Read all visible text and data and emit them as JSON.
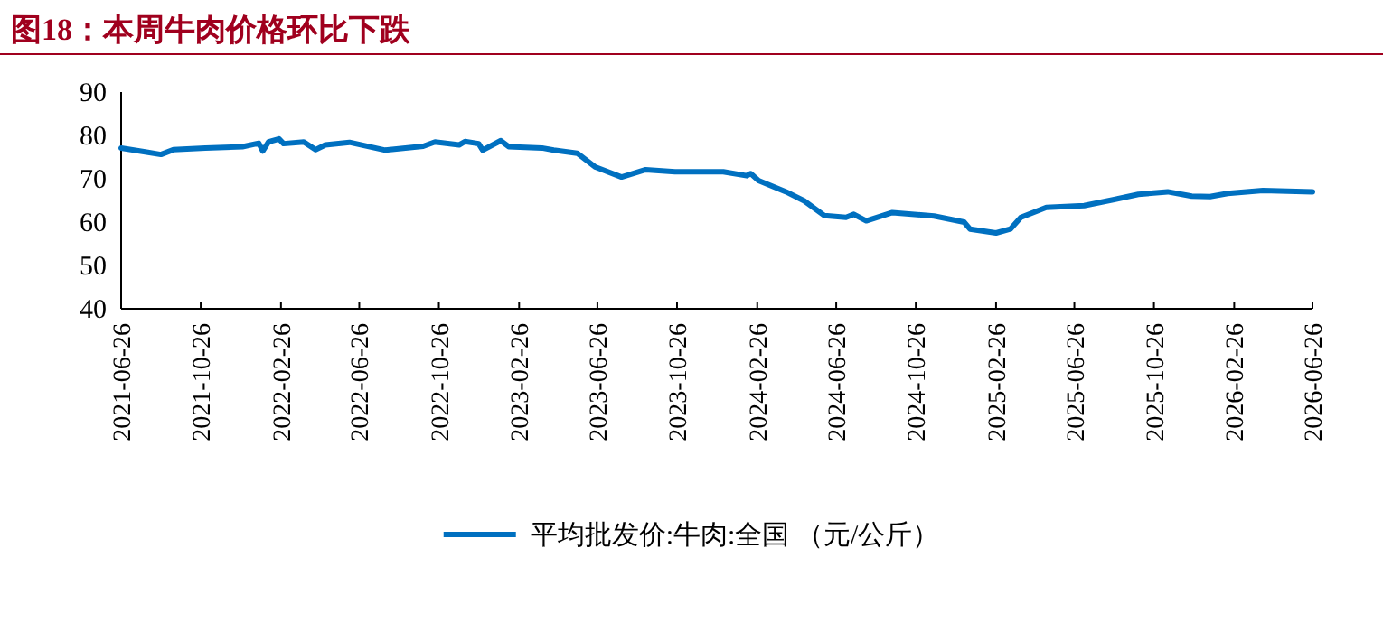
{
  "chart_data": {
    "type": "line",
    "title": "图18：本周牛肉价格环比下跌",
    "legend": "bottom",
    "xlim": [
      "2021-06-26",
      "2026-06-26"
    ],
    "xticks": [
      "2021-06-26",
      "2021-10-26",
      "2022-02-26",
      "2022-06-26",
      "2022-10-26",
      "2023-02-26",
      "2023-06-26",
      "2023-10-26",
      "2024-02-26",
      "2024-06-26",
      "2024-10-26",
      "2025-02-26",
      "2025-06-26",
      "2025-10-26",
      "2026-02-26",
      "2026-06-26"
    ],
    "ylim": [
      40,
      90
    ],
    "yticks": [
      40,
      50,
      60,
      70,
      80,
      90
    ],
    "series": [
      {
        "name": "平均批发价:牛肉:全国 （元/公斤）",
        "color": "#0070c0",
        "x": [
          "2021-06-26",
          "2021-08-02",
          "2021-08-26",
          "2021-09-14",
          "2021-11-02",
          "2021-12-29",
          "2022-01-23",
          "2022-01-29",
          "2022-02-07",
          "2022-02-23",
          "2022-03-02",
          "2022-04-02",
          "2022-04-20",
          "2022-05-05",
          "2022-06-11",
          "2022-08-05",
          "2022-10-02",
          "2022-10-20",
          "2022-11-26",
          "2022-12-05",
          "2022-12-26",
          "2023-01-01",
          "2023-01-29",
          "2023-02-10",
          "2023-04-02",
          "2023-04-20",
          "2023-05-26",
          "2023-06-23",
          "2023-08-02",
          "2023-09-08",
          "2023-10-23",
          "2024-01-05",
          "2024-02-10",
          "2024-02-16",
          "2024-02-28",
          "2024-04-10",
          "2024-05-08",
          "2024-06-08",
          "2024-07-11",
          "2024-07-23",
          "2024-08-11",
          "2024-09-20",
          "2024-11-23",
          "2025-01-08",
          "2025-01-17",
          "2025-02-26",
          "2025-03-20",
          "2025-04-05",
          "2025-05-14",
          "2025-07-11",
          "2025-08-26",
          "2025-10-02",
          "2025-11-16",
          "2025-12-23",
          "2026-01-20",
          "2026-02-16",
          "2026-04-11",
          "2026-06-26"
        ],
        "values": [
          77.1,
          76.2,
          75.6,
          76.7,
          77.1,
          77.4,
          78.2,
          76.4,
          78.5,
          79.2,
          78.1,
          78.5,
          76.7,
          77.8,
          78.4,
          76.6,
          77.5,
          78.5,
          77.8,
          78.6,
          78.1,
          76.6,
          78.8,
          77.4,
          77.1,
          76.6,
          75.9,
          72.7,
          70.4,
          72.1,
          71.6,
          71.6,
          70.7,
          71.2,
          69.6,
          67.0,
          64.9,
          61.5,
          61.1,
          61.8,
          60.3,
          62.2,
          61.4,
          60.0,
          58.4,
          57.5,
          58.4,
          61.1,
          63.4,
          63.8,
          65.2,
          66.4,
          67.0,
          66.0,
          65.9,
          66.6,
          67.3,
          67.0
        ]
      }
    ]
  }
}
